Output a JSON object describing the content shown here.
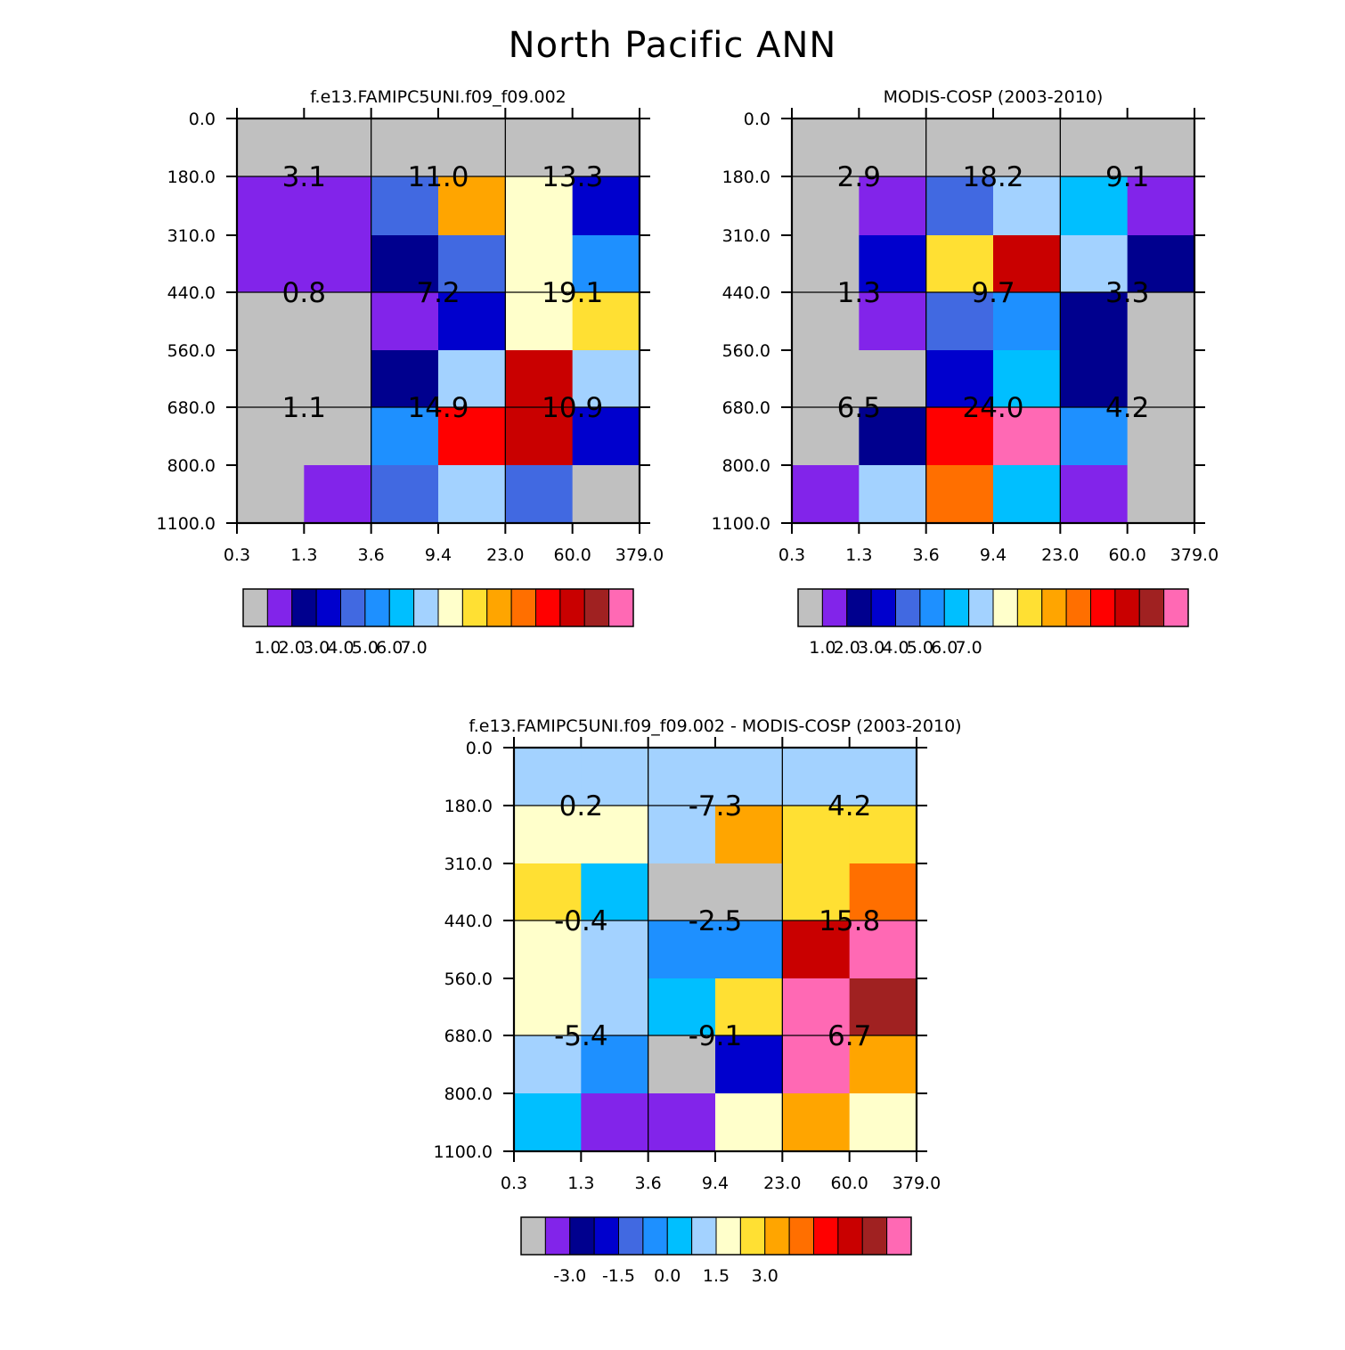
{
  "title": "North Pacific ANN",
  "palette": {
    "main": [
      "#c0c0c0",
      "#8224ea",
      "#00008e",
      "#0000cd",
      "#4169e1",
      "#1e90ff",
      "#00bfff",
      "#a3d2ff",
      "#ffffcb",
      "#ffe033",
      "#ffa500",
      "#ff6f00",
      "#ff0000",
      "#c90000",
      "#a02121",
      "#ff69b4"
    ],
    "diff": [
      "#c0c0c0",
      "#8224ea",
      "#00008e",
      "#0000cd",
      "#4169e1",
      "#1e90ff",
      "#00bfff",
      "#a3d2ff",
      "#ffffcb",
      "#ffe033",
      "#ffa500",
      "#ff6f00",
      "#ff0000",
      "#c90000",
      "#a02121",
      "#ff69b4"
    ]
  },
  "chart_data": [
    {
      "id": "model",
      "type": "heatmap",
      "title": "f.e13.FAMIPC5UNI.f09_f09.002",
      "x_ticks": [
        "0.3",
        "1.3",
        "3.6",
        "9.4",
        "23.0",
        "60.0",
        "379.0"
      ],
      "y_ticks": [
        "0.0",
        "180.0",
        "310.0",
        "440.0",
        "560.0",
        "680.0",
        "800.0",
        "1100.0"
      ],
      "cell_colors": [
        [
          0,
          0,
          0,
          0,
          0,
          0
        ],
        [
          1,
          1,
          4,
          10,
          8,
          3
        ],
        [
          1,
          1,
          2,
          4,
          8,
          5
        ],
        [
          0,
          0,
          1,
          3,
          8,
          9
        ],
        [
          0,
          0,
          2,
          7,
          13,
          7
        ],
        [
          0,
          0,
          5,
          12,
          13,
          3
        ],
        [
          0,
          1,
          4,
          7,
          4,
          0
        ]
      ],
      "block_labels": [
        [
          "3.1",
          "11.0",
          "13.3"
        ],
        [
          "0.8",
          "7.2",
          "19.1"
        ],
        [
          "1.1",
          "14.9",
          "10.9"
        ]
      ],
      "colorbar_labels": [
        "1.0",
        "2.0",
        "3.0",
        "4.0",
        "5.0",
        "6.0",
        "7.0"
      ]
    },
    {
      "id": "obs",
      "type": "heatmap",
      "title": "MODIS-COSP (2003-2010)",
      "x_ticks": [
        "0.3",
        "1.3",
        "3.6",
        "9.4",
        "23.0",
        "60.0",
        "379.0"
      ],
      "y_ticks": [
        "0.0",
        "180.0",
        "310.0",
        "440.0",
        "560.0",
        "680.0",
        "800.0",
        "1100.0"
      ],
      "cell_colors": [
        [
          0,
          0,
          0,
          0,
          0,
          0
        ],
        [
          0,
          1,
          4,
          7,
          6,
          1
        ],
        [
          0,
          3,
          9,
          13,
          7,
          2
        ],
        [
          0,
          1,
          4,
          5,
          2,
          0
        ],
        [
          0,
          0,
          3,
          6,
          2,
          0
        ],
        [
          0,
          2,
          12,
          15,
          5,
          0
        ],
        [
          1,
          7,
          11,
          6,
          1,
          0
        ]
      ],
      "block_labels": [
        [
          "2.9",
          "18.2",
          "9.1"
        ],
        [
          "1.3",
          "9.7",
          "3.3"
        ],
        [
          "6.5",
          "24.0",
          "4.2"
        ]
      ],
      "colorbar_labels": [
        "1.0",
        "2.0",
        "3.0",
        "4.0",
        "5.0",
        "6.0",
        "7.0"
      ]
    },
    {
      "id": "diff",
      "type": "heatmap",
      "title": "f.e13.FAMIPC5UNI.f09_f09.002 - MODIS-COSP (2003-2010)",
      "x_ticks": [
        "0.3",
        "1.3",
        "3.6",
        "9.4",
        "23.0",
        "60.0",
        "379.0"
      ],
      "y_ticks": [
        "0.0",
        "180.0",
        "310.0",
        "440.0",
        "560.0",
        "680.0",
        "800.0",
        "1100.0"
      ],
      "cell_colors": [
        [
          7,
          7,
          7,
          7,
          7,
          7
        ],
        [
          8,
          8,
          7,
          10,
          9,
          9
        ],
        [
          9,
          6,
          0,
          0,
          9,
          11
        ],
        [
          8,
          7,
          5,
          5,
          13,
          15
        ],
        [
          8,
          7,
          6,
          9,
          15,
          14
        ],
        [
          7,
          5,
          0,
          3,
          15,
          10
        ],
        [
          6,
          1,
          1,
          8,
          10,
          8
        ]
      ],
      "block_labels": [
        [
          "0.2",
          "-7.3",
          "4.2"
        ],
        [
          "-0.4",
          "-2.5",
          "15.8"
        ],
        [
          "-5.4",
          "-9.1",
          "6.7"
        ]
      ],
      "colorbar_labels": [
        "-3.0",
        "-1.5",
        "0.0",
        "1.5",
        "3.0"
      ]
    }
  ]
}
